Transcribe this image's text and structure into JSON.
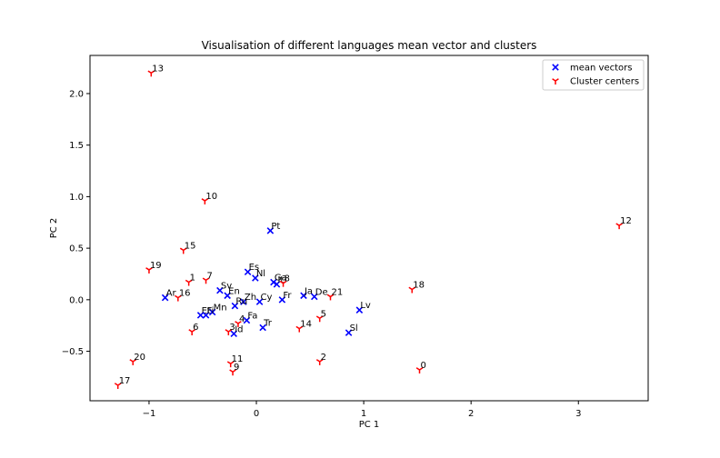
{
  "chart_data": {
    "type": "scatter",
    "title": "Visualisation of different languages mean vector and clusters",
    "xlabel": "PC 1",
    "ylabel": "PC 2",
    "xlim": [
      -1.55,
      3.65
    ],
    "ylim": [
      -0.98,
      2.37
    ],
    "xticks": [
      -1,
      0,
      1,
      2,
      3
    ],
    "xtick_labels": [
      "−1",
      "0",
      "1",
      "2",
      "3"
    ],
    "yticks": [
      -0.5,
      0.0,
      0.5,
      1.0,
      1.5,
      2.0
    ],
    "ytick_labels": [
      "−0.5",
      "0.0",
      "0.5",
      "1.0",
      "1.5",
      "2.0"
    ],
    "grid": false,
    "legend_position": "top-right",
    "series": [
      {
        "name": "mean vectors",
        "marker": "x",
        "color": "#0000ff",
        "points": [
          {
            "label": "Pt",
            "x": 0.13,
            "y": 0.67
          },
          {
            "label": "Es",
            "x": -0.08,
            "y": 0.27
          },
          {
            "label": "Nl",
            "x": -0.01,
            "y": 0.21
          },
          {
            "label": "Ga",
            "x": 0.16,
            "y": 0.17
          },
          {
            "label": "It",
            "x": 0.19,
            "y": 0.15
          },
          {
            "label": "Sv",
            "x": -0.34,
            "y": 0.09
          },
          {
            "label": "En",
            "x": -0.27,
            "y": 0.04
          },
          {
            "label": "Ar",
            "x": -0.85,
            "y": 0.02
          },
          {
            "label": "Zh",
            "x": -0.12,
            "y": -0.02
          },
          {
            "label": "Cy",
            "x": 0.03,
            "y": -0.02
          },
          {
            "label": "Fr",
            "x": 0.24,
            "y": 0.0
          },
          {
            "label": "Ja",
            "x": 0.44,
            "y": 0.04
          },
          {
            "label": "De",
            "x": 0.54,
            "y": 0.03
          },
          {
            "label": "Ru",
            "x": -0.2,
            "y": -0.06
          },
          {
            "label": "Mn",
            "x": -0.41,
            "y": -0.12
          },
          {
            "label": "Et",
            "x": -0.52,
            "y": -0.15
          },
          {
            "label": "Fi",
            "x": -0.47,
            "y": -0.15
          },
          {
            "label": "Fa",
            "x": -0.09,
            "y": -0.2
          },
          {
            "label": "Tr",
            "x": 0.06,
            "y": -0.27
          },
          {
            "label": "Id",
            "x": -0.21,
            "y": -0.33
          },
          {
            "label": "Sl",
            "x": 0.86,
            "y": -0.32
          },
          {
            "label": "Lv",
            "x": 0.96,
            "y": -0.1
          }
        ]
      },
      {
        "name": "Cluster centers",
        "marker": "tri_down",
        "color": "#ff0000",
        "points": [
          {
            "label": "0",
            "x": 1.52,
            "y": -0.68
          },
          {
            "label": "1",
            "x": -0.63,
            "y": 0.17
          },
          {
            "label": "2",
            "x": 0.59,
            "y": -0.6
          },
          {
            "label": "3",
            "x": -0.26,
            "y": -0.31
          },
          {
            "label": "4",
            "x": -0.17,
            "y": -0.23
          },
          {
            "label": "5",
            "x": 0.59,
            "y": -0.18
          },
          {
            "label": "6",
            "x": -0.6,
            "y": -0.31
          },
          {
            "label": "7",
            "x": -0.47,
            "y": 0.19
          },
          {
            "label": "8",
            "x": 0.25,
            "y": 0.16
          },
          {
            "label": "9",
            "x": -0.22,
            "y": -0.7
          },
          {
            "label": "10",
            "x": -0.48,
            "y": 0.96
          },
          {
            "label": "11",
            "x": -0.24,
            "y": -0.62
          },
          {
            "label": "12",
            "x": 3.38,
            "y": 0.72
          },
          {
            "label": "13",
            "x": -0.98,
            "y": 2.2
          },
          {
            "label": "14",
            "x": 0.4,
            "y": -0.28
          },
          {
            "label": "15",
            "x": -0.68,
            "y": 0.48
          },
          {
            "label": "16",
            "x": -0.73,
            "y": 0.02
          },
          {
            "label": "17",
            "x": -1.29,
            "y": -0.83
          },
          {
            "label": "18",
            "x": 1.45,
            "y": 0.1
          },
          {
            "label": "19",
            "x": -1.0,
            "y": 0.29
          },
          {
            "label": "20",
            "x": -1.15,
            "y": -0.6
          },
          {
            "label": "21",
            "x": 0.69,
            "y": 0.03
          }
        ]
      }
    ]
  }
}
